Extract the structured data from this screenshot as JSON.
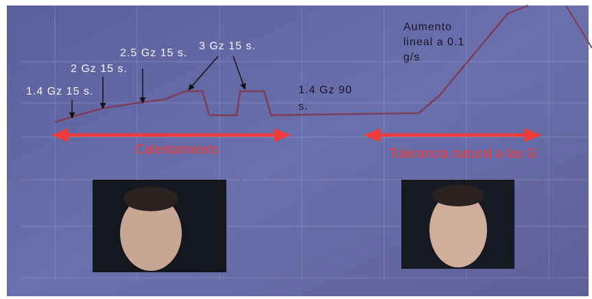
{
  "annotations": [
    {
      "lines": [
        "1.4 Gz 15 s."
      ]
    },
    {
      "lines": [
        "2 Gz 15 s."
      ]
    },
    {
      "lines": [
        "2.5 Gz 15 s."
      ]
    },
    {
      "lines": [
        "3 Gz 15 s."
      ]
    },
    {
      "lines": [
        "1.4 Gz 90",
        "s."
      ]
    },
    {
      "lines": [
        "Aumento",
        "lineal  a 0.1",
        "g/s"
      ]
    }
  ],
  "phases": [
    "Calentamiento",
    "Tolerancia natural a las  G"
  ]
}
